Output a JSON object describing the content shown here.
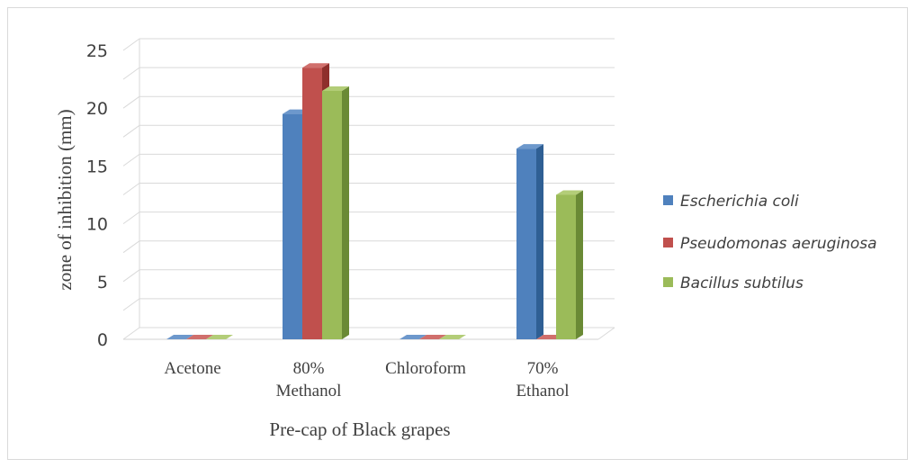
{
  "chart_data": {
    "type": "bar",
    "title": "",
    "xlabel": "Pre-cap of Black grapes",
    "ylabel": "zone of inhibition (mm)",
    "ylim": [
      0,
      25
    ],
    "yticks": [
      0,
      5,
      10,
      15,
      20,
      25
    ],
    "categories": [
      [
        "Acetone"
      ],
      [
        "80%",
        "Methanol"
      ],
      [
        "Chloroform"
      ],
      [
        "70%",
        "Ethanol"
      ]
    ],
    "series": [
      {
        "name": "Escherichia coli",
        "values": [
          0,
          19.5,
          0,
          16.5
        ]
      },
      {
        "name": "Pseudomonas aeruginosa",
        "values": [
          0,
          23.5,
          0,
          0
        ]
      },
      {
        "name": "Bacillus subtilus",
        "values": [
          0,
          21.5,
          0,
          12.5
        ]
      }
    ],
    "grid": true,
    "legend_position": "right",
    "colors": [
      {
        "front": "#4f81bd",
        "side": "#2f5f94",
        "top": "#6d98cc"
      },
      {
        "front": "#c0504d",
        "side": "#8e2f2c",
        "top": "#d06f6c"
      },
      {
        "front": "#9bbb59",
        "side": "#6a8a35",
        "top": "#b3cd78"
      }
    ],
    "grid_color": "#d9d9d9"
  }
}
